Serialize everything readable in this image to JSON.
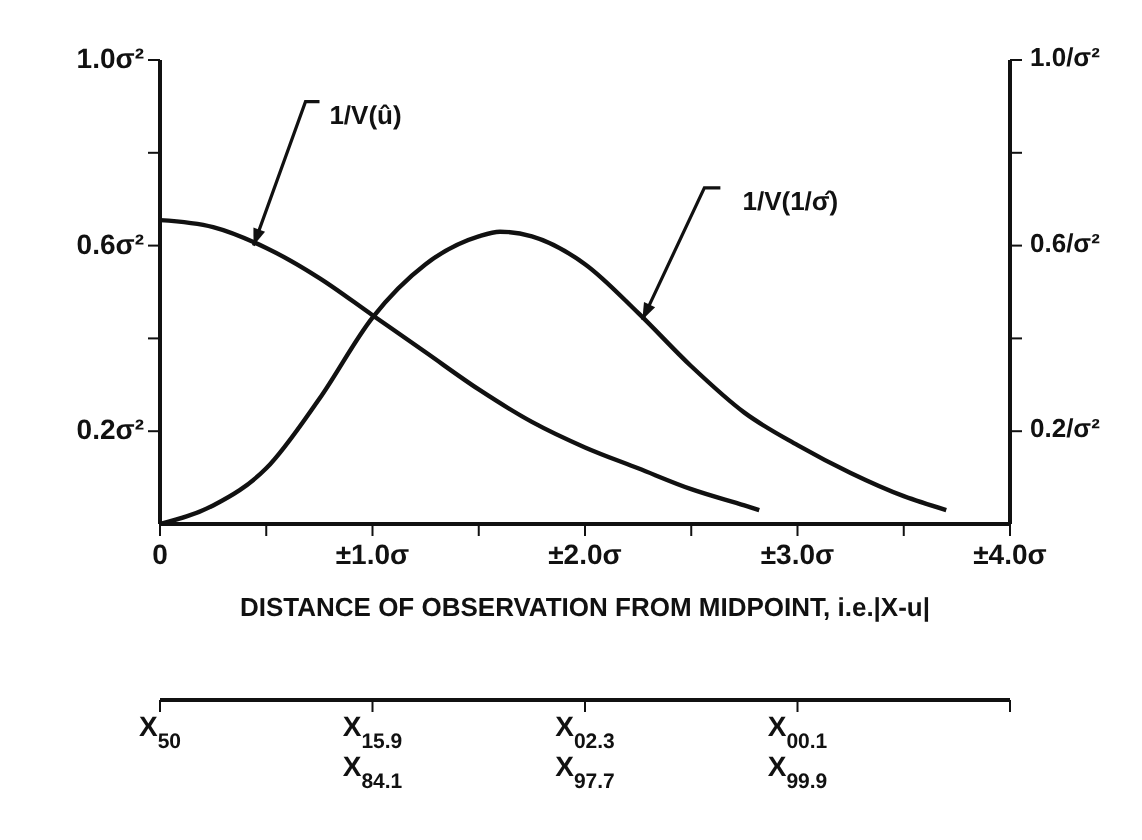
{
  "chart_data": {
    "type": "line",
    "xlabel": "DISTANCE OF OBSERVATION FROM MIDPOINT, i.e.|X-u|",
    "xlim": [
      0,
      4
    ],
    "xticks": [
      {
        "value": 0,
        "label": "0"
      },
      {
        "value": 0.5,
        "label": null
      },
      {
        "value": 1,
        "label": "±1.0σ"
      },
      {
        "value": 1.5,
        "label": null
      },
      {
        "value": 2,
        "label": "±2.0σ"
      },
      {
        "value": 2.5,
        "label": null
      },
      {
        "value": 3,
        "label": "±3.0σ"
      },
      {
        "value": 3.5,
        "label": null
      },
      {
        "value": 4,
        "label": "±4.0σ"
      }
    ],
    "ylim": [
      0,
      1
    ],
    "yticks": [
      {
        "value": 0.2,
        "label": "0.2σ²"
      },
      {
        "value": 0.4,
        "label": null
      },
      {
        "value": 0.6,
        "label": "0.6σ²"
      },
      {
        "value": 0.8,
        "label": null
      },
      {
        "value": 1,
        "label": "1.0σ²"
      }
    ],
    "y2lim": [
      0,
      1
    ],
    "y2ticks": [
      {
        "value": 0.2,
        "label": "0.2/σ²"
      },
      {
        "value": 0.4,
        "label": null
      },
      {
        "value": 0.6,
        "label": "0.6/σ²"
      },
      {
        "value": 0.8,
        "label": null
      },
      {
        "value": 1,
        "label": "1.0/σ²"
      }
    ],
    "series": [
      {
        "color": "#111111",
        "x": [
          0,
          0.25,
          0.5,
          0.75,
          1,
          1.25,
          1.5,
          1.75,
          2,
          2.25,
          2.5,
          2.75,
          2.82
        ],
        "values": [
          0.655,
          0.64,
          0.595,
          0.53,
          0.45,
          0.37,
          0.29,
          0.22,
          0.165,
          0.12,
          0.075,
          0.04,
          0.03
        ]
      },
      {
        "color": "#111111",
        "x": [
          0,
          0.25,
          0.5,
          0.75,
          1,
          1.25,
          1.5,
          1.6,
          1.75,
          2,
          2.25,
          2.5,
          2.75,
          3,
          3.25,
          3.5,
          3.7
        ],
        "values": [
          0,
          0.04,
          0.12,
          0.27,
          0.445,
          0.56,
          0.62,
          0.63,
          0.62,
          0.56,
          0.455,
          0.34,
          0.24,
          0.17,
          0.11,
          0.06,
          0.03
        ]
      }
    ],
    "annotations": [
      {
        "text": "1/V(û)",
        "x": 0.44,
        "y": 0.6
      },
      {
        "text": "1/V(1/σ̂)",
        "x": 2.27,
        "y": 0.44
      },
      "X$_{50}$",
      "X$_{15.9}$\nX$_{84.1}$",
      "X$_{02.3}$\nX$_{97.7}$",
      "X$_{00.1}$\nX$_{99.9}$"
    ]
  }
}
